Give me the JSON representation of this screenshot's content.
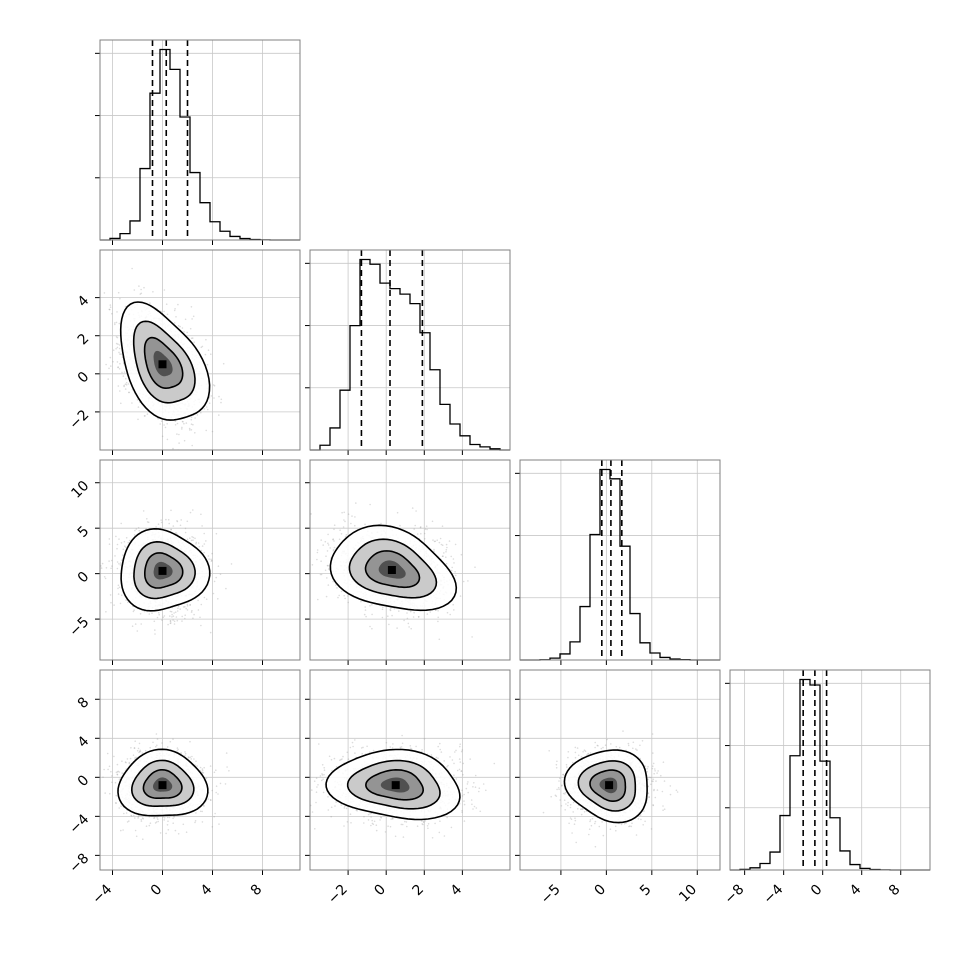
{
  "chart_data": {
    "type": "corner",
    "grid": true,
    "colors": {
      "line": "#000000",
      "grid": "#c8c8c8",
      "points": "#9a9a9a"
    },
    "params": [
      {
        "range": [
          -5,
          11
        ],
        "ticks": [
          -4,
          0,
          4,
          8
        ],
        "tick_labels": [
          "−4",
          "0",
          "4",
          "8"
        ]
      },
      {
        "range": [
          -4,
          6.5
        ],
        "ticks": [
          -2,
          0,
          2,
          4
        ],
        "tick_labels": [
          "−2",
          "0",
          "2",
          "4"
        ]
      },
      {
        "range": [
          -9.5,
          12.5
        ],
        "ticks": [
          -5,
          0,
          5,
          10
        ],
        "tick_labels": [
          "−5",
          "0",
          "5",
          "10"
        ]
      },
      {
        "range": [
          -9.5,
          11
        ],
        "ticks": [
          -8,
          -4,
          0,
          4,
          8
        ],
        "tick_labels": [
          "−8",
          "−4",
          "0",
          "4",
          "8"
        ]
      }
    ],
    "y_ticks": [
      null,
      {
        "ticks": [
          -2,
          0,
          2,
          4
        ],
        "tick_labels": [
          "−2",
          "0",
          "2",
          "4"
        ]
      },
      {
        "ticks": [
          -5,
          0,
          5,
          10
        ],
        "tick_labels": [
          "−5",
          "0",
          "5",
          "10"
        ]
      },
      {
        "ticks": [
          -8,
          -4,
          0,
          4,
          8
        ],
        "tick_labels": [
          "−8",
          "−4",
          "0",
          "4",
          "8"
        ]
      }
    ],
    "histograms": [
      {
        "edges": [
          -5,
          -4.2,
          -3.4,
          -2.6,
          -1.8,
          -1.0,
          -0.2,
          0.6,
          1.4,
          2.2,
          3.0,
          3.8,
          4.6,
          5.4,
          6.2,
          7.0,
          7.8,
          8.6,
          9.4,
          10.2,
          11.0
        ],
        "counts": [
          0,
          20,
          80,
          240,
          900,
          1850,
          2400,
          2150,
          1550,
          850,
          470,
          230,
          110,
          45,
          18,
          6,
          2,
          0,
          0,
          0
        ],
        "quantiles": [
          -0.8,
          0.3,
          2.0
        ]
      },
      {
        "edges": [
          -4.0,
          -3.475,
          -2.95,
          -2.425,
          -1.9,
          -1.375,
          -0.85,
          -0.325,
          0.2,
          0.725,
          1.25,
          1.775,
          2.3,
          2.825,
          3.35,
          3.875,
          4.4,
          4.925,
          5.45,
          5.975,
          6.5
        ],
        "counts": [
          0,
          60,
          280,
          760,
          1580,
          2420,
          2360,
          2120,
          2050,
          1980,
          1860,
          1490,
          1020,
          580,
          330,
          180,
          70,
          40,
          15,
          0
        ],
        "quantiles": [
          -1.3,
          0.2,
          1.9
        ]
      },
      {
        "edges": [
          -9.5,
          -8.4,
          -7.3,
          -6.2,
          -5.1,
          -4.0,
          -2.9,
          -1.8,
          -0.7,
          0.4,
          1.5,
          2.6,
          3.7,
          4.8,
          5.9,
          7.0,
          8.1,
          9.2,
          10.3,
          11.4,
          12.5
        ],
        "counts": [
          0,
          0,
          5,
          40,
          130,
          390,
          1150,
          2700,
          4100,
          3900,
          2450,
          1000,
          370,
          150,
          55,
          20,
          8,
          0,
          0,
          0
        ],
        "quantiles": [
          -0.5,
          0.5,
          1.7
        ]
      },
      {
        "edges": [
          -9.5,
          -8.475,
          -7.45,
          -6.425,
          -5.4,
          -4.375,
          -3.35,
          -2.325,
          -1.3,
          -0.275,
          0.75,
          1.775,
          2.8,
          3.825,
          4.85,
          5.875,
          6.9,
          7.925,
          8.95,
          9.975,
          11.0
        ],
        "counts": [
          0,
          10,
          40,
          120,
          330,
          1000,
          2100,
          3500,
          3400,
          2000,
          960,
          350,
          100,
          30,
          8,
          2,
          0,
          0,
          0,
          0
        ],
        "quantiles": [
          -2.0,
          -0.8,
          0.4
        ]
      }
    ],
    "pairs": [
      {
        "row": 1,
        "col": 0,
        "center": [
          0.0,
          0.5
        ],
        "sigma": [
          1.6,
          1.5
        ],
        "rho": -0.4
      },
      {
        "row": 2,
        "col": 0,
        "center": [
          0.0,
          0.3
        ],
        "sigma": [
          1.6,
          2.2
        ],
        "rho": 0.0
      },
      {
        "row": 2,
        "col": 1,
        "center": [
          0.3,
          0.4
        ],
        "sigma": [
          1.5,
          2.2
        ],
        "rho": -0.2
      },
      {
        "row": 3,
        "col": 0,
        "center": [
          0.0,
          -0.8
        ],
        "sigma": [
          1.6,
          1.7
        ],
        "rho": 0.0
      },
      {
        "row": 3,
        "col": 1,
        "center": [
          0.5,
          -0.8
        ],
        "sigma": [
          1.6,
          1.7
        ],
        "rho": -0.05
      },
      {
        "row": 3,
        "col": 2,
        "center": [
          0.3,
          -0.8
        ],
        "sigma": [
          2.2,
          1.7
        ],
        "rho": 0.0
      }
    ]
  }
}
